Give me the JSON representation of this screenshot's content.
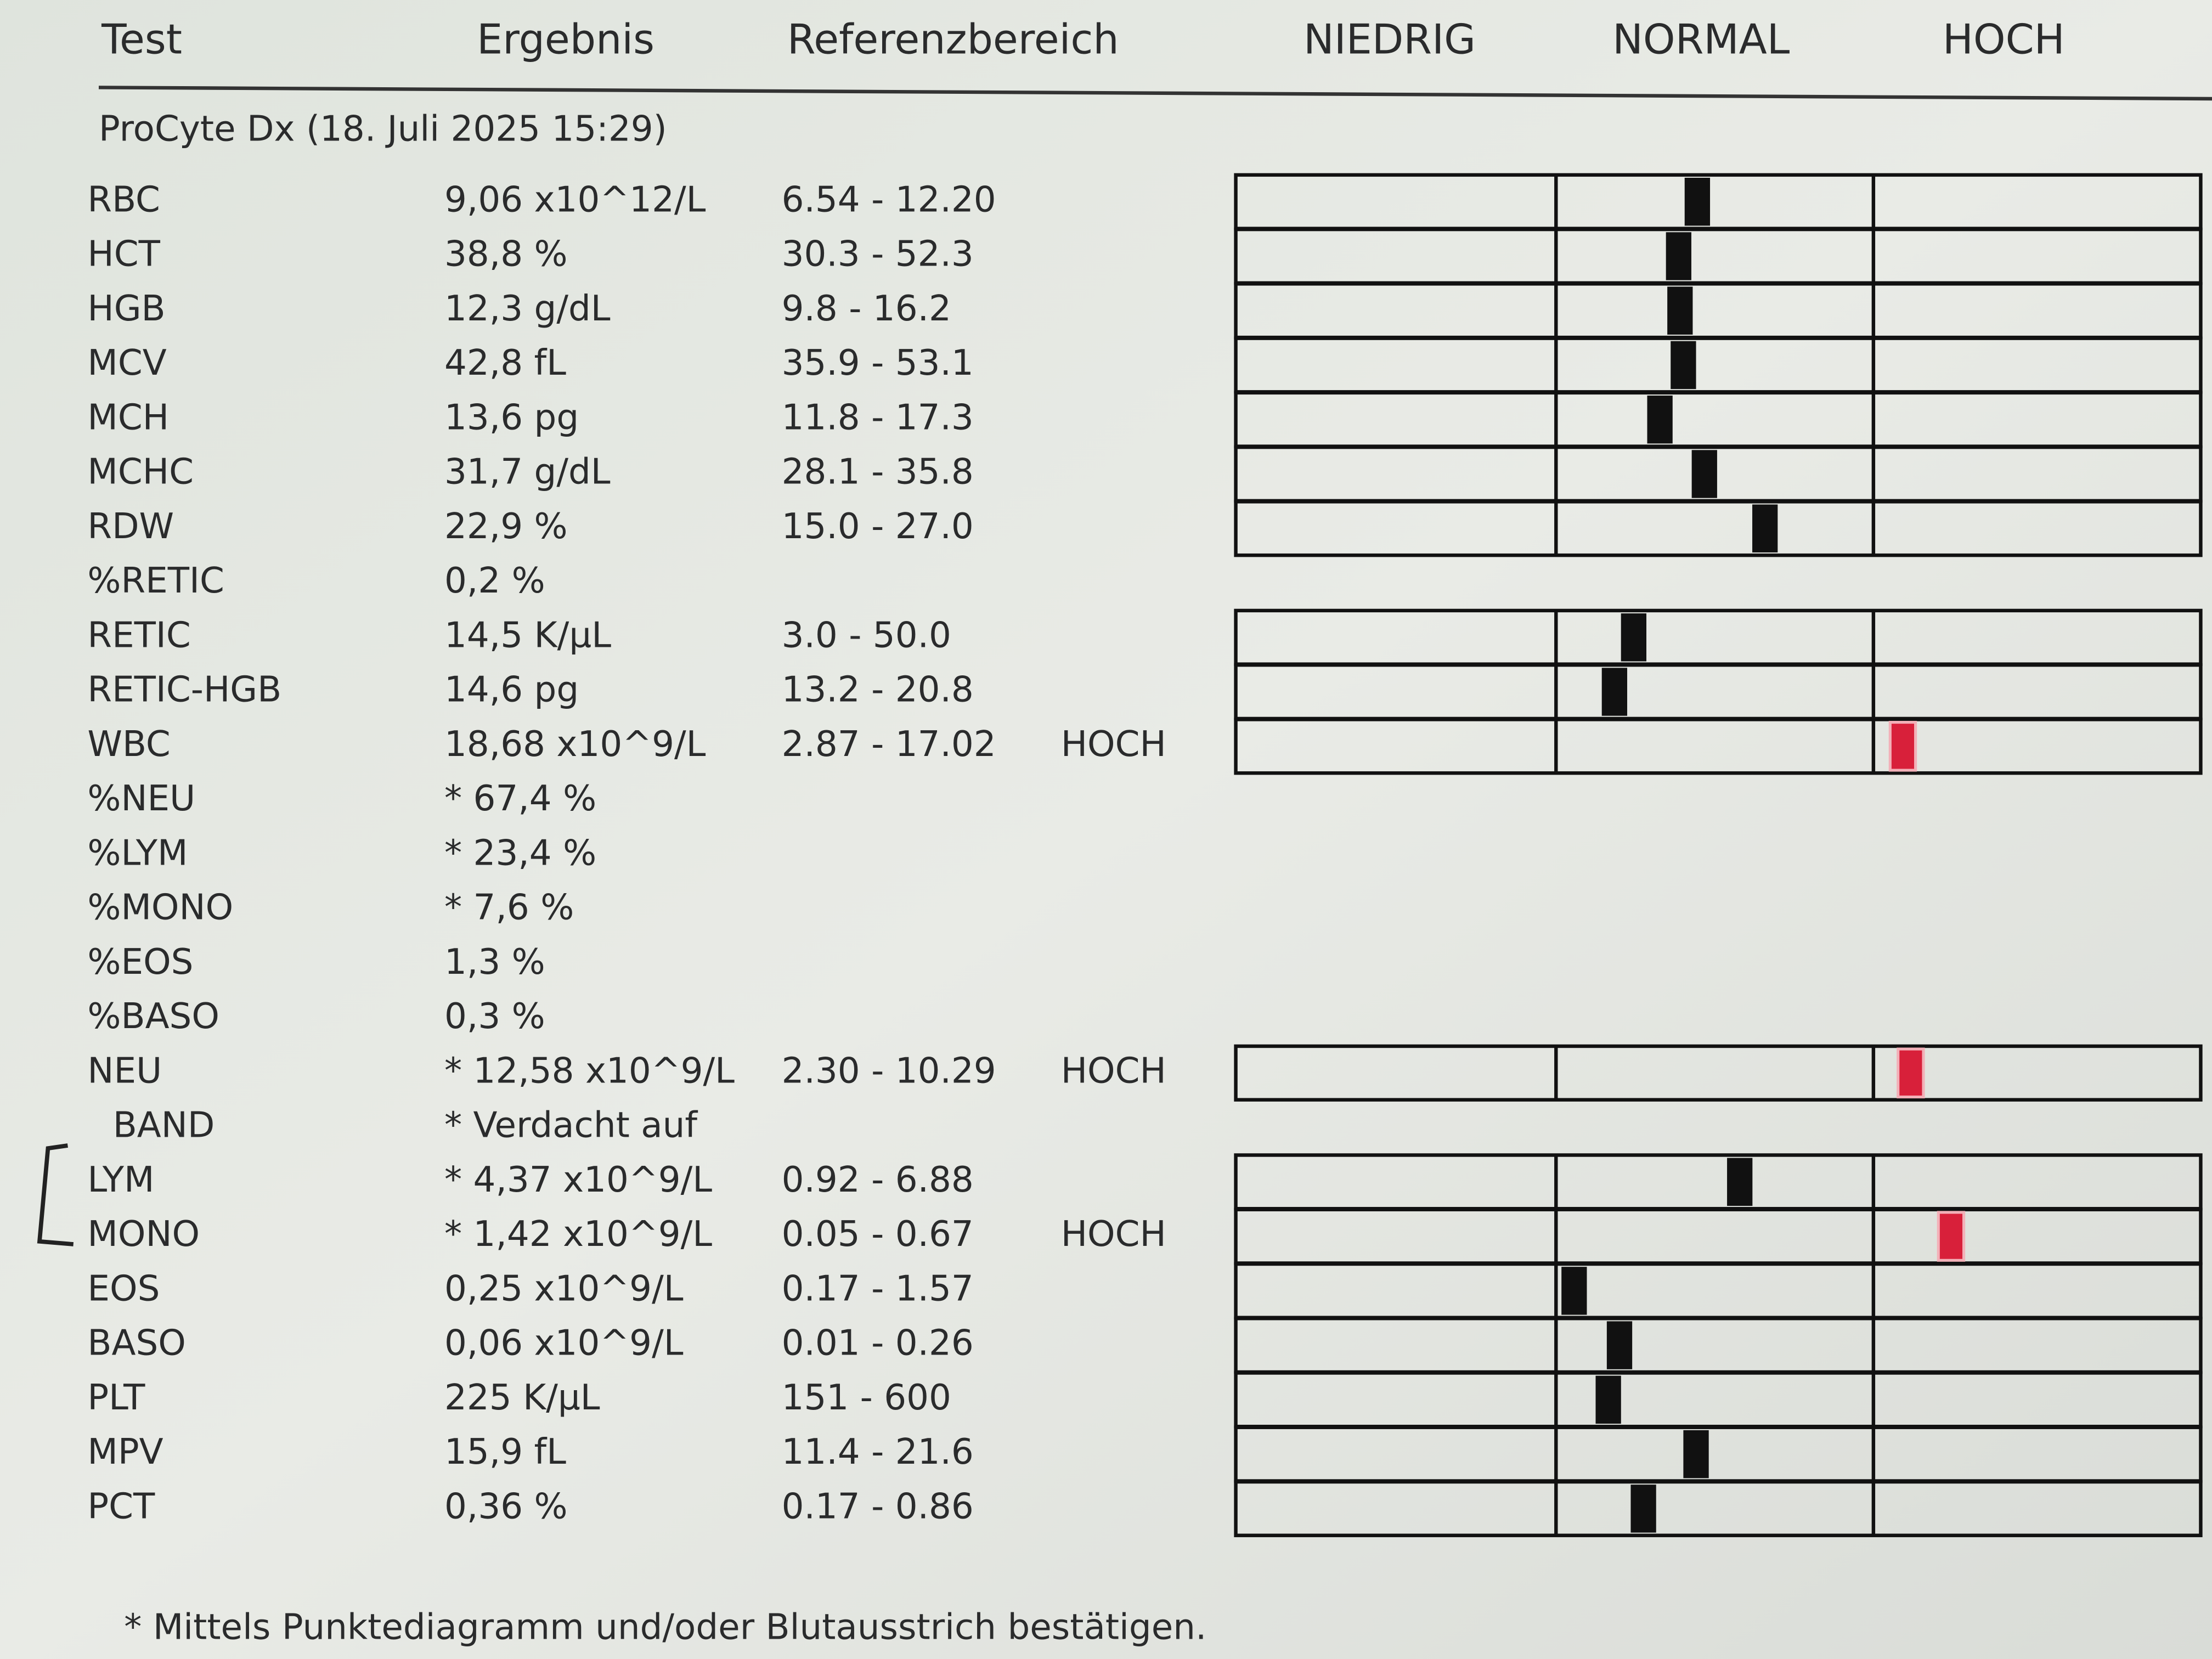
{
  "header": {
    "columns": [
      "Test",
      "Ergebnis",
      "Referenzbereich",
      "NIEDRIG",
      "NORMAL",
      "HOCH"
    ]
  },
  "instrument": "ProCyte Dx (18. Juli 2025 15:29)",
  "rows": [
    {
      "test": "RBC",
      "result": "9,06 x10^12/L",
      "range": "6.54 - 12.20"
    },
    {
      "test": "HCT",
      "result": "38,8 %",
      "range": "30.3 - 52.3"
    },
    {
      "test": "HGB",
      "result": "12,3 g/dL",
      "range": "9.8 - 16.2"
    },
    {
      "test": "MCV",
      "result": "42,8 fL",
      "range": "35.9 - 53.1"
    },
    {
      "test": "MCH",
      "result": "13,6 pg",
      "range": "11.8 - 17.3"
    },
    {
      "test": "MCHC",
      "result": "31,7 g/dL",
      "range": "28.1 - 35.8"
    },
    {
      "test": "RDW",
      "result": "22,9 %",
      "range": "15.0 - 27.0"
    },
    {
      "test": "%RETIC",
      "result": "0,2 %"
    },
    {
      "test": "RETIC",
      "result": "14,5 K/µL",
      "range": "3.0 - 50.0"
    },
    {
      "test": "RETIC-HGB",
      "result": "14,6 pg",
      "range": "13.2 - 20.8"
    },
    {
      "test": "WBC",
      "result": "18,68 x10^9/L",
      "range": "2.87 - 17.02",
      "flag": "HOCH",
      "color": "#8a2a3c"
    },
    {
      "test": "%NEU",
      "result": "* 67,4 %"
    },
    {
      "test": "%LYM",
      "result": "* 23,4 %"
    },
    {
      "test": "%MONO",
      "result": "* 7,6 %"
    },
    {
      "test": "%EOS",
      "result": "1,3 %"
    },
    {
      "test": "%BASO",
      "result": "0,3 %"
    },
    {
      "test": "NEU",
      "result": "* 12,58 x10^9/L",
      "range": "2.30 - 10.29",
      "flag": "HOCH",
      "color": "#8a2a3c"
    },
    {
      "test": "BAND",
      "result": "* Verdacht auf",
      "color": "#8a2a3c"
    },
    {
      "test": "LYM",
      "result": "* 4,37 x10^9/L",
      "range": "0.92 - 6.88"
    },
    {
      "test": "MONO",
      "result": "* 1,42 x10^9/L",
      "range": "0.05 - 0.67",
      "flag": "HOCH",
      "color": "#8a2a3c"
    },
    {
      "test": "EOS",
      "result": "0,25 x10^9/L",
      "range": "0.17 - 1.57"
    },
    {
      "test": "BASO",
      "result": "0,06 x10^9/L",
      "range": "0.01 - 0.26"
    },
    {
      "test": "PLT",
      "result": "225 K/µL",
      "range": "151 - 600"
    },
    {
      "test": "MPV",
      "result": "15,9 fL",
      "range": "11.4 - 21.6"
    },
    {
      "test": "PCT",
      "result": "0,36 %",
      "range": "0.17 - 0.86"
    }
  ],
  "footnote": "* Mittels Punktediagramm und/oder Blutausstrich bestätigen."
}
